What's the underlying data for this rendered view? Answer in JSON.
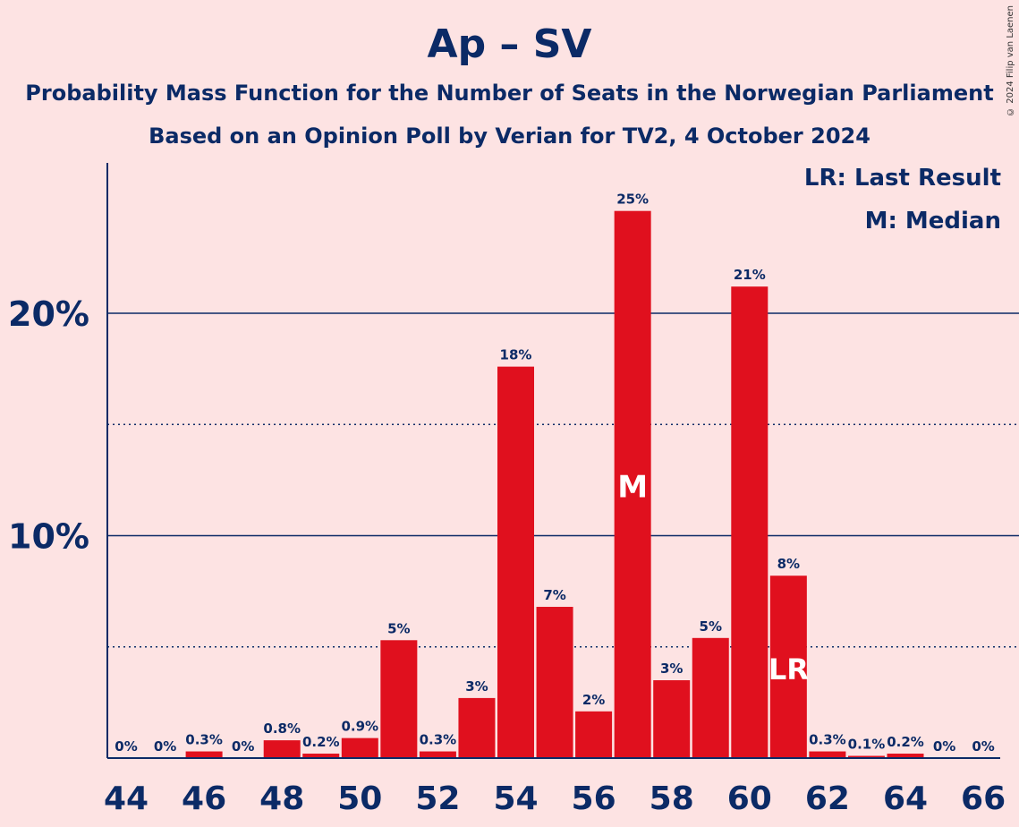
{
  "header": {
    "title": "Ap – SV",
    "subtitle1": "Probability Mass Function for the Number of Seats in the Norwegian Parliament",
    "subtitle2": "Based on an Opinion Poll by Verian for TV2, 4 October 2024",
    "copyright": "© 2024 Filip van Laenen"
  },
  "legend": {
    "last_result": "LR: Last Result",
    "median": "M: Median"
  },
  "colors": {
    "bar": "#e0101e",
    "axis": "#0b2a66",
    "background": "#fde3e3"
  },
  "chart_data": {
    "type": "bar",
    "title": "Ap – SV",
    "xlabel": "",
    "ylabel": "",
    "ylim": [
      0,
      27
    ],
    "ytick_labels": [
      "10%",
      "20%"
    ],
    "ytick_values": [
      10,
      20
    ],
    "minor_gridlines": [
      5,
      15
    ],
    "categories": [
      44,
      45,
      46,
      47,
      48,
      49,
      50,
      51,
      52,
      53,
      54,
      55,
      56,
      57,
      58,
      59,
      60,
      61,
      62,
      63,
      64,
      65,
      66
    ],
    "xtick_labels": [
      "44",
      "46",
      "48",
      "50",
      "52",
      "54",
      "56",
      "58",
      "60",
      "62",
      "64",
      "66"
    ],
    "values": [
      0,
      0,
      0.3,
      0,
      0.8,
      0.2,
      0.9,
      5.3,
      0.3,
      2.7,
      17.6,
      6.8,
      2.1,
      24.6,
      3.5,
      5.4,
      21.2,
      8.2,
      0.3,
      0.1,
      0.2,
      0,
      0
    ],
    "labels": [
      "0%",
      "0%",
      "0.3%",
      "0%",
      "0.8%",
      "0.2%",
      "0.9%",
      "5%",
      "0.3%",
      "3%",
      "18%",
      "7%",
      "2%",
      "25%",
      "3%",
      "5%",
      "21%",
      "8%",
      "0.3%",
      "0.1%",
      "0.2%",
      "0%",
      "0%"
    ],
    "markers": {
      "median": {
        "seat": 57,
        "label": "M"
      },
      "last_result": {
        "seat": 61,
        "label": "LR"
      }
    }
  }
}
